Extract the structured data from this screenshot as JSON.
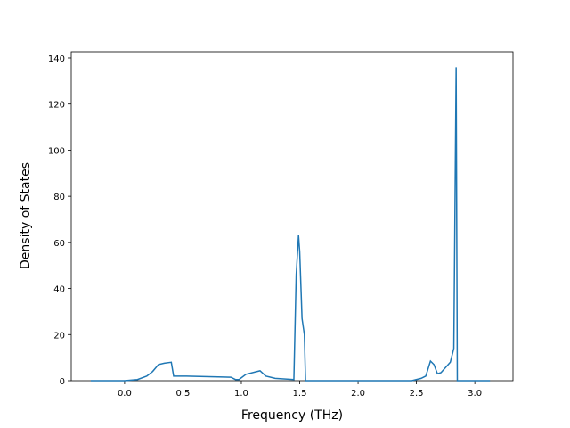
{
  "chart_data": {
    "type": "line",
    "xlabel": "Frequency (THz)",
    "ylabel": "Density of States",
    "series": [
      {
        "color": "#1f77b4",
        "x": [
          -0.29,
          0.0,
          0.11,
          0.19,
          0.24,
          0.29,
          0.34,
          0.4,
          0.42,
          0.53,
          0.91,
          0.95,
          0.98,
          1.04,
          1.16,
          1.21,
          1.29,
          1.45,
          1.47,
          1.49,
          1.5,
          1.52,
          1.54,
          1.55,
          2.46,
          2.54,
          2.58,
          2.62,
          2.65,
          2.68,
          2.71,
          2.79,
          2.82,
          2.84,
          2.85,
          3.13
        ],
        "values": [
          0,
          0,
          0.5,
          2,
          4,
          7,
          7.6,
          8,
          2,
          2,
          1.5,
          0.5,
          0.5,
          2.8,
          4.3,
          2,
          1,
          0.5,
          46,
          63,
          56,
          27,
          20,
          0,
          0,
          1,
          2,
          8.5,
          7,
          3,
          3.5,
          8,
          14,
          136,
          0,
          0
        ]
      }
    ],
    "xlim": [
      -0.457,
      3.327
    ],
    "ylim": [
      0,
      142.7
    ],
    "xticks": [
      {
        "value": 0,
        "label": "0.0"
      },
      {
        "value": 0.5,
        "label": "0.5"
      },
      {
        "value": 1,
        "label": "1.0"
      },
      {
        "value": 1.5,
        "label": "1.5"
      },
      {
        "value": 2,
        "label": "2.0"
      },
      {
        "value": 2.5,
        "label": "2.5"
      },
      {
        "value": 3,
        "label": "3.0"
      }
    ],
    "yticks": [
      0,
      20,
      40,
      60,
      80,
      100,
      120,
      140
    ]
  }
}
